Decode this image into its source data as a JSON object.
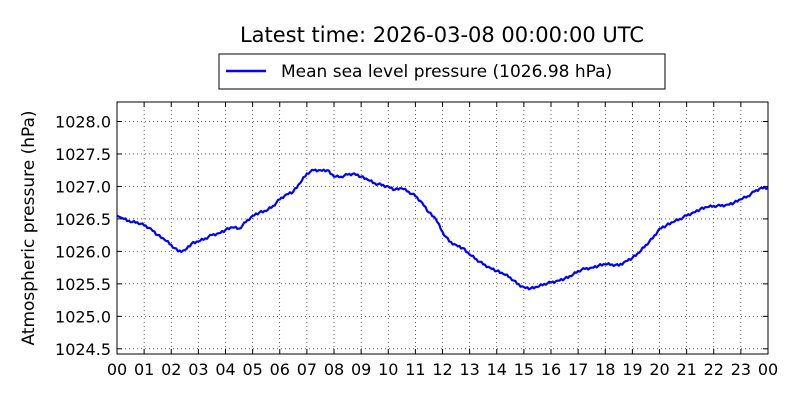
{
  "chart_data": {
    "type": "line",
    "title": "Latest time: 2026-03-08 00:00:00 UTC",
    "xlabel": "",
    "ylabel": "Atmospheric pressure (hPa)",
    "x_ticks": [
      "00",
      "01",
      "02",
      "03",
      "04",
      "05",
      "06",
      "07",
      "08",
      "09",
      "10",
      "11",
      "12",
      "13",
      "14",
      "15",
      "16",
      "17",
      "18",
      "19",
      "20",
      "21",
      "22",
      "23",
      "00"
    ],
    "xlim": [
      0,
      24
    ],
    "ylim": [
      1024.42,
      1028.3
    ],
    "y_ticks": [
      "1024.5",
      "1025.0",
      "1025.5",
      "1026.0",
      "1026.5",
      "1027.0",
      "1027.5",
      "1028.0"
    ],
    "grid": true,
    "legend_position": "top-center",
    "series": [
      {
        "name": "Mean sea level pressure (1026.98 hPa)",
        "color": "#0000ff",
        "x": [
          0.0,
          0.25,
          0.5,
          0.75,
          1.0,
          1.25,
          1.5,
          1.75,
          2.0,
          2.25,
          2.5,
          2.75,
          3.0,
          3.25,
          3.5,
          3.75,
          4.0,
          4.25,
          4.5,
          4.75,
          5.0,
          5.25,
          5.5,
          5.75,
          6.0,
          6.25,
          6.5,
          6.75,
          7.0,
          7.25,
          7.5,
          7.75,
          8.0,
          8.25,
          8.5,
          8.75,
          9.0,
          9.25,
          9.5,
          9.75,
          10.0,
          10.25,
          10.5,
          10.75,
          11.0,
          11.25,
          11.5,
          11.75,
          12.0,
          12.25,
          12.5,
          12.75,
          13.0,
          13.25,
          13.5,
          13.75,
          14.0,
          14.25,
          14.5,
          14.75,
          15.0,
          15.25,
          15.5,
          15.75,
          16.0,
          16.25,
          16.5,
          16.75,
          17.0,
          17.25,
          17.5,
          17.75,
          18.0,
          18.25,
          18.5,
          18.75,
          19.0,
          19.25,
          19.5,
          19.75,
          20.0,
          20.25,
          20.5,
          20.75,
          21.0,
          21.25,
          21.5,
          21.75,
          22.0,
          22.25,
          22.5,
          22.75,
          23.0,
          23.25,
          23.5,
          23.75,
          24.0
        ],
        "y": [
          1026.55,
          1026.5,
          1026.45,
          1026.45,
          1026.4,
          1026.35,
          1026.25,
          1026.18,
          1026.1,
          1026.0,
          1026.02,
          1026.12,
          1026.15,
          1026.2,
          1026.25,
          1026.28,
          1026.33,
          1026.37,
          1026.35,
          1026.45,
          1026.55,
          1026.6,
          1026.62,
          1026.7,
          1026.8,
          1026.88,
          1026.92,
          1027.05,
          1027.2,
          1027.25,
          1027.25,
          1027.25,
          1027.15,
          1027.15,
          1027.18,
          1027.2,
          1027.15,
          1027.1,
          1027.05,
          1027.02,
          1027.0,
          1026.95,
          1026.97,
          1026.92,
          1026.85,
          1026.75,
          1026.6,
          1026.5,
          1026.3,
          1026.15,
          1026.1,
          1026.05,
          1025.95,
          1025.88,
          1025.8,
          1025.75,
          1025.7,
          1025.65,
          1025.6,
          1025.5,
          1025.45,
          1025.43,
          1025.45,
          1025.5,
          1025.52,
          1025.55,
          1025.58,
          1025.62,
          1025.7,
          1025.73,
          1025.75,
          1025.78,
          1025.8,
          1025.8,
          1025.78,
          1025.85,
          1025.9,
          1025.98,
          1026.1,
          1026.2,
          1026.35,
          1026.4,
          1026.45,
          1026.5,
          1026.55,
          1026.6,
          1026.65,
          1026.68,
          1026.7,
          1026.7,
          1026.72,
          1026.75,
          1026.8,
          1026.85,
          1026.92,
          1026.98,
          1026.98
        ]
      }
    ]
  }
}
